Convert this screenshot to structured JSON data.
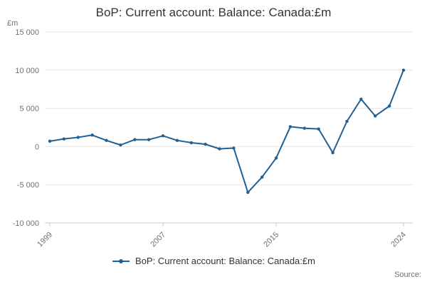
{
  "header": {
    "title": "BoP: Current account: Balance: Canada:£m"
  },
  "y_axis": {
    "unit": "£m"
  },
  "legend": {
    "label": "BoP: Current account: Balance: Canada:£m"
  },
  "footer": {
    "source_label": "Source:"
  },
  "colors": {
    "line": "#206095",
    "grid": "#e6e6e6",
    "axis": "#cccccc",
    "text": "#707071",
    "title": "#333333"
  },
  "chart_data": {
    "type": "line",
    "title": "BoP: Current account: Balance: Canada:£m",
    "series_name": "BoP: Current account: Balance: Canada:£m",
    "x": [
      1999,
      2000,
      2001,
      2002,
      2003,
      2004,
      2005,
      2006,
      2007,
      2008,
      2009,
      2010,
      2011,
      2012,
      2013,
      2014,
      2015,
      2016,
      2017,
      2018,
      2019,
      2020,
      2021,
      2022,
      2023,
      2024
    ],
    "values": [
      700,
      1000,
      1200,
      1500,
      800,
      200,
      900,
      900,
      1400,
      800,
      500,
      300,
      -300,
      -200,
      -6000,
      -4000,
      -1500,
      2600,
      2400,
      2300,
      -800,
      3300,
      6200,
      4000,
      5300,
      10000
    ],
    "xlabel": "",
    "ylabel": "£m",
    "ylim": [
      -10000,
      15000
    ],
    "yticks": [
      15000,
      10000,
      5000,
      0,
      -5000,
      -10000
    ],
    "ytick_labels": [
      "15 000",
      "10 000",
      "5 000",
      "0",
      "-5 000",
      "-10 000"
    ],
    "xticks": [
      1999,
      2007,
      2015,
      2024
    ],
    "grid": "horizontal",
    "marker": "circle",
    "legend_position": "bottom"
  }
}
